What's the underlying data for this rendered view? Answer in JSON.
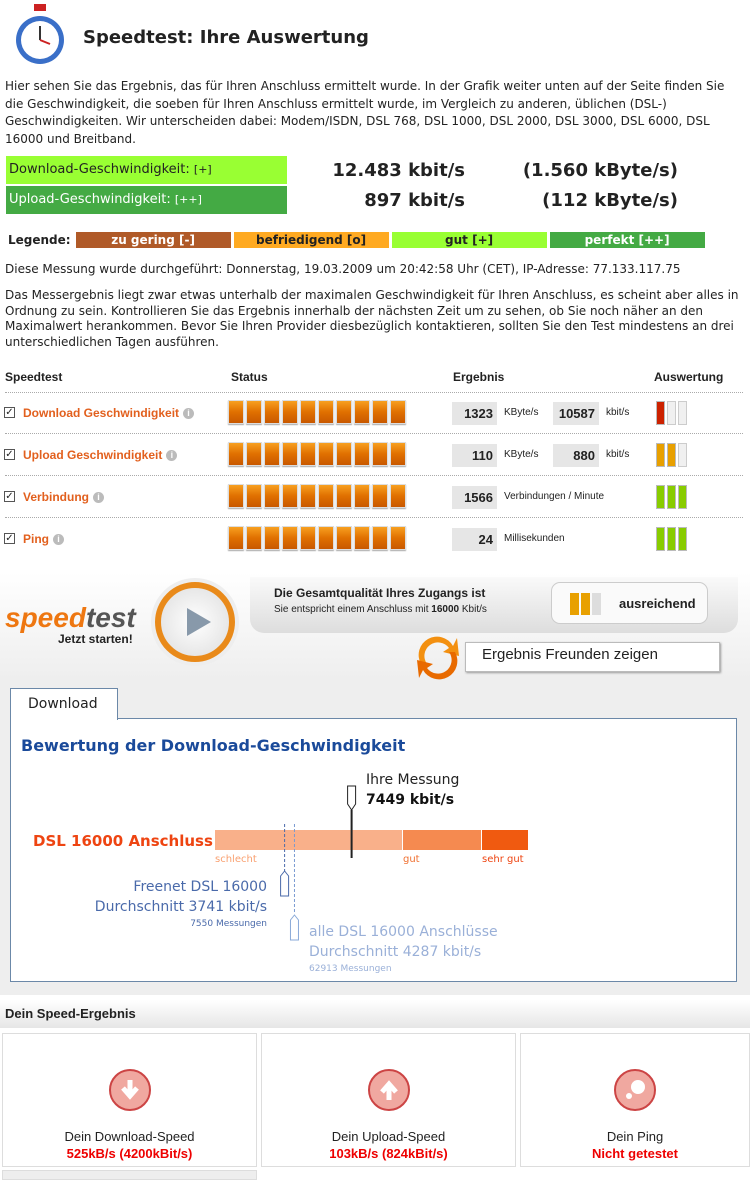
{
  "header": {
    "title": "Speedtest: Ihre Auswertung",
    "icon": "stopwatch-icon"
  },
  "intro": "Hier sehen Sie das Ergebnis, das für Ihren Anschluss ermittelt wurde. In der Grafik weiter unten auf der Seite finden Sie die Geschwindigkeit, die soeben für Ihren Anschluss ermittelt wurde, im Vergleich zu anderen, üblichen (DSL-) Geschwindigkeiten. Wir unterscheiden dabei: Modem/ISDN, DSL 768, DSL 1000, DSL 2000, DSL 3000, DSL 6000, DSL 16000 und Breitband.",
  "speeds": [
    {
      "label": "Download-Geschwindigkeit:",
      "rating": "[+]",
      "kbit": "12.483 kbit/s",
      "kbyte": "(1.560 kByte/s)",
      "color": "#99ff33"
    },
    {
      "label": "Upload-Geschwindigkeit:",
      "rating": "[++]",
      "kbit": "897 kbit/s",
      "kbyte": "(112 kByte/s)",
      "color": "#44aa44"
    }
  ],
  "legend": {
    "label": "Legende:",
    "items": [
      {
        "text": "zu gering [-]",
        "color": "#b05a28"
      },
      {
        "text": "befriedigend [o]",
        "color": "#ffaa22"
      },
      {
        "text": "gut [+]",
        "color": "#99ff33"
      },
      {
        "text": "perfekt [++]",
        "color": "#44aa44"
      }
    ]
  },
  "measurement": "Diese Messung wurde durchgeführt: Donnerstag, 19.03.2009 um 20:42:58 Uhr (CET), IP-Adresse: 77.133.117.75",
  "assessment": "Das Messergebnis liegt zwar etwas unterhalb der maximalen Geschwindigkeit für Ihren Anschluss, es scheint aber alles in Ordnung zu sein. Kontrollieren Sie das Ergebnis innerhalb der nächsten Zeit um zu sehen, ob Sie noch näher an den Maximalwert herankommen. Bevor Sie Ihren Provider diesbezüglich kontaktieren, sollten Sie den Test mindestens an drei unterschiedlichen Tagen ausführen.",
  "table": {
    "headers": [
      "Speedtest",
      "Status",
      "Ergebnis",
      "Auswertung"
    ],
    "rows": [
      {
        "name": "Download Geschwindigkeit",
        "v1": "1323",
        "u1": "KByte/s",
        "v2": "10587",
        "u2": "kbit/s",
        "rating": 1,
        "rating_color": "#cc2200",
        "status_blocks": 10
      },
      {
        "name": "Upload Geschwindigkeit",
        "v1": "110",
        "u1": "KByte/s",
        "v2": "880",
        "u2": "kbit/s",
        "rating": 2,
        "rating_color": "#e8a000",
        "status_blocks": 10
      },
      {
        "name": "Verbindung",
        "v1": "1566",
        "u1": "Verbindungen / Minute",
        "rating": 3,
        "rating_color": "#88cc00",
        "status_blocks": 10
      },
      {
        "name": "Ping",
        "v1": "24",
        "u1": "Millisekunden",
        "rating": 3,
        "rating_color": "#88cc00",
        "status_blocks": 10
      }
    ]
  },
  "banner": {
    "logo_a": "speed",
    "logo_b": "test",
    "start": "Jetzt starten!",
    "quality_title": "Die Gesamtqualität Ihres Zugangs ist",
    "quality_sub_a": "Sie entspricht einem Anschluss mit ",
    "quality_sub_b": "16000",
    "quality_sub_c": " Kbit/s",
    "quality_label": "ausreichend",
    "quality_rating": 2,
    "share": "Ergebnis Freunden zeigen"
  },
  "download_tab": {
    "tab": "Download",
    "heading": "Bewertung der Download-Geschwindigkeit",
    "line_label": "DSL 16000 Anschluss",
    "scale": [
      "schlecht",
      "gut",
      "sehr gut"
    ],
    "yours": {
      "label": "Ihre Messung",
      "value": "7449 kbit/s",
      "kbit": 7449
    },
    "provider": {
      "name": "Freenet DSL 16000",
      "avg": "Durchschnitt 3741 kbit/s",
      "count": "7550 Messungen",
      "kbit": 3741
    },
    "all": {
      "name": "alle DSL 16000 Anschlüsse",
      "avg": "Durchschnitt 4287 kbit/s",
      "count": "62913 Messungen",
      "kbit": 4287
    }
  },
  "result": {
    "title": "Dein Speed-Ergebnis",
    "cards": [
      {
        "label": "Dein Download-Speed",
        "value": "525kB/s (4200kBit/s)",
        "icon": "download-arrow-icon"
      },
      {
        "label": "Dein Upload-Speed",
        "value": "103kB/s (824kBit/s)",
        "icon": "upload-arrow-icon"
      },
      {
        "label": "Dein Ping",
        "value": "Nicht getestet",
        "icon": "ping-icon"
      }
    ]
  }
}
